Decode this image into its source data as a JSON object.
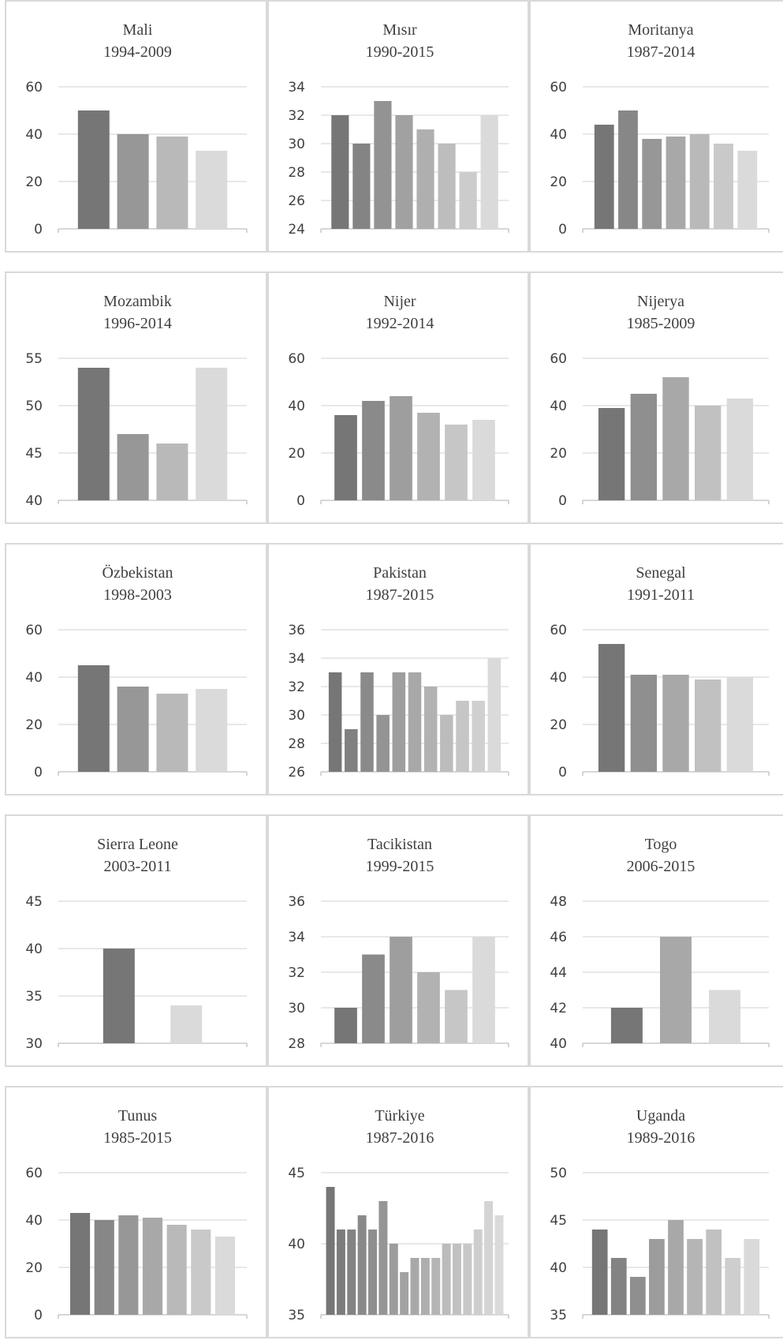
{
  "chart_data": [
    {
      "type": "bar",
      "title": "Mali",
      "subtitle": "1994-2009",
      "ylim": [
        0,
        60
      ],
      "ticks": [
        0,
        20,
        40,
        60
      ],
      "values": [
        50,
        40,
        39,
        33
      ]
    },
    {
      "type": "bar",
      "title": "Mısır",
      "subtitle": "1990-2015",
      "ylim": [
        24,
        34
      ],
      "ticks": [
        24,
        26,
        28,
        30,
        32,
        34
      ],
      "values": [
        32,
        30,
        33,
        32,
        31,
        30,
        28,
        32
      ]
    },
    {
      "type": "bar",
      "title": "Moritanya",
      "subtitle": "1987-2014",
      "ylim": [
        0,
        60
      ],
      "ticks": [
        0,
        20,
        40,
        60
      ],
      "values": [
        44,
        50,
        38,
        39,
        40,
        36,
        33
      ]
    },
    {
      "type": "bar",
      "title": "Mozambik",
      "subtitle": "1996-2014",
      "ylim": [
        40,
        55
      ],
      "ticks": [
        40,
        45,
        50,
        55
      ],
      "values": [
        54,
        47,
        46,
        54
      ]
    },
    {
      "type": "bar",
      "title": "Nijer",
      "subtitle": "1992-2014",
      "ylim": [
        0,
        60
      ],
      "ticks": [
        0,
        20,
        40,
        60
      ],
      "values": [
        36,
        42,
        44,
        37,
        32,
        34
      ]
    },
    {
      "type": "bar",
      "title": "Nijerya",
      "subtitle": "1985-2009",
      "ylim": [
        0,
        60
      ],
      "ticks": [
        0,
        20,
        40,
        60
      ],
      "values": [
        39,
        45,
        52,
        40,
        43
      ]
    },
    {
      "type": "bar",
      "title": "Özbekistan",
      "subtitle": "1998-2003",
      "ylim": [
        0,
        60
      ],
      "ticks": [
        0,
        20,
        40,
        60
      ],
      "values": [
        45,
        36,
        33,
        35
      ]
    },
    {
      "type": "bar",
      "title": "Pakistan",
      "subtitle": "1987-2015",
      "ylim": [
        26,
        36
      ],
      "ticks": [
        26,
        28,
        30,
        32,
        34,
        36
      ],
      "values": [
        33,
        29,
        33,
        30,
        33,
        33,
        32,
        30,
        31,
        31,
        34
      ]
    },
    {
      "type": "bar",
      "title": "Senegal",
      "subtitle": "1991-2011",
      "ylim": [
        0,
        60
      ],
      "ticks": [
        0,
        20,
        40,
        60
      ],
      "values": [
        54,
        41,
        41,
        39,
        40
      ]
    },
    {
      "type": "bar",
      "title": "Sierra Leone",
      "subtitle": "2003-2011",
      "ylim": [
        30,
        45
      ],
      "ticks": [
        30,
        35,
        40,
        45
      ],
      "values": [
        40,
        34
      ]
    },
    {
      "type": "bar",
      "title": "Tacikistan",
      "subtitle": "1999-2015",
      "ylim": [
        28,
        36
      ],
      "ticks": [
        28,
        30,
        32,
        34,
        36
      ],
      "values": [
        30,
        33,
        34,
        32,
        31,
        34
      ]
    },
    {
      "type": "bar",
      "title": "Togo",
      "subtitle": "2006-2015",
      "ylim": [
        40,
        48
      ],
      "ticks": [
        40,
        42,
        44,
        46,
        48
      ],
      "values": [
        42,
        46,
        43
      ]
    },
    {
      "type": "bar",
      "title": "Tunus",
      "subtitle": "1985-2015",
      "ylim": [
        0,
        60
      ],
      "ticks": [
        0,
        20,
        40,
        60
      ],
      "values": [
        43,
        40,
        42,
        41,
        38,
        36,
        33
      ]
    },
    {
      "type": "bar",
      "title": "Türkiye",
      "subtitle": "1987-2016",
      "ylim": [
        35,
        45
      ],
      "ticks": [
        35,
        40,
        45
      ],
      "values": [
        44,
        41,
        41,
        42,
        41,
        43,
        40,
        38,
        39,
        39,
        39,
        40,
        40,
        40,
        41,
        43,
        42
      ]
    },
    {
      "type": "bar",
      "title": "Uganda",
      "subtitle": "1989-2016",
      "ylim": [
        35,
        50
      ],
      "ticks": [
        35,
        40,
        45,
        50
      ],
      "values": [
        44,
        41,
        39,
        43,
        45,
        43,
        44,
        41,
        43
      ]
    }
  ],
  "colors": {
    "bar_dark": "#767676",
    "bar_light": "#dadada",
    "gridline": "#d9d9d9",
    "panel_border": "#d9d9d9",
    "text": "#404040"
  }
}
